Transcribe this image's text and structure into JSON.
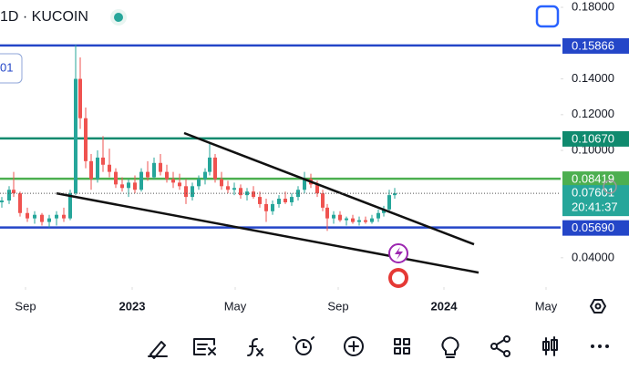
{
  "chart_data": {
    "type": "candlestick",
    "title": "1D · KUCOIN",
    "indicator_label": "01",
    "x": [
      2,
      10,
      15,
      22,
      30,
      38,
      46,
      54,
      62,
      70,
      77,
      83,
      88,
      94,
      100,
      107,
      113,
      120,
      127,
      134,
      141,
      148,
      155,
      162,
      169,
      176,
      183,
      190,
      197,
      204,
      211,
      218,
      225,
      230,
      236,
      243,
      250,
      257,
      264,
      271,
      278,
      285,
      292,
      299,
      306,
      313,
      320,
      327,
      334,
      341,
      348,
      354,
      359,
      366,
      373,
      380,
      387,
      394,
      401,
      408,
      415,
      421,
      427,
      433
    ],
    "open": [
      0.071,
      0.072,
      0.078,
      0.076,
      0.065,
      0.062,
      0.064,
      0.06,
      0.062,
      0.064,
      0.062,
      0.076,
      0.14,
      0.118,
      0.094,
      0.084,
      0.096,
      0.092,
      0.088,
      0.081,
      0.079,
      0.082,
      0.078,
      0.088,
      0.085,
      0.093,
      0.088,
      0.084,
      0.082,
      0.08,
      0.074,
      0.08,
      0.084,
      0.088,
      0.096,
      0.084,
      0.08,
      0.078,
      0.079,
      0.075,
      0.077,
      0.074,
      0.07,
      0.066,
      0.07,
      0.073,
      0.071,
      0.074,
      0.078,
      0.084,
      0.081,
      0.076,
      0.068,
      0.062,
      0.064,
      0.061,
      0.062,
      0.06,
      0.061,
      0.06,
      0.062,
      0.065,
      0.067,
      0.075
    ],
    "high": [
      0.074,
      0.08,
      0.088,
      0.077,
      0.068,
      0.066,
      0.065,
      0.064,
      0.066,
      0.068,
      0.078,
      0.159,
      0.152,
      0.124,
      0.098,
      0.1,
      0.108,
      0.101,
      0.09,
      0.085,
      0.084,
      0.086,
      0.09,
      0.094,
      0.096,
      0.098,
      0.092,
      0.088,
      0.087,
      0.084,
      0.082,
      0.086,
      0.09,
      0.104,
      0.098,
      0.088,
      0.083,
      0.082,
      0.081,
      0.079,
      0.08,
      0.077,
      0.073,
      0.072,
      0.075,
      0.077,
      0.076,
      0.08,
      0.088,
      0.087,
      0.083,
      0.078,
      0.07,
      0.066,
      0.066,
      0.063,
      0.064,
      0.063,
      0.063,
      0.064,
      0.067,
      0.069,
      0.078,
      0.079
    ],
    "low": [
      0.068,
      0.07,
      0.074,
      0.063,
      0.06,
      0.059,
      0.058,
      0.057,
      0.058,
      0.06,
      0.061,
      0.075,
      0.112,
      0.09,
      0.078,
      0.082,
      0.088,
      0.085,
      0.079,
      0.077,
      0.074,
      0.076,
      0.077,
      0.083,
      0.084,
      0.086,
      0.082,
      0.079,
      0.078,
      0.07,
      0.072,
      0.078,
      0.081,
      0.086,
      0.082,
      0.078,
      0.076,
      0.075,
      0.073,
      0.072,
      0.073,
      0.068,
      0.06,
      0.064,
      0.068,
      0.07,
      0.069,
      0.072,
      0.076,
      0.079,
      0.074,
      0.066,
      0.055,
      0.059,
      0.06,
      0.058,
      0.059,
      0.058,
      0.059,
      0.059,
      0.06,
      0.063,
      0.066,
      0.073
    ],
    "close": [
      0.072,
      0.078,
      0.076,
      0.065,
      0.062,
      0.064,
      0.06,
      0.062,
      0.064,
      0.062,
      0.076,
      0.14,
      0.118,
      0.094,
      0.084,
      0.096,
      0.092,
      0.088,
      0.081,
      0.079,
      0.082,
      0.078,
      0.088,
      0.085,
      0.093,
      0.088,
      0.084,
      0.082,
      0.08,
      0.074,
      0.08,
      0.084,
      0.088,
      0.096,
      0.084,
      0.08,
      0.078,
      0.079,
      0.075,
      0.077,
      0.074,
      0.07,
      0.066,
      0.07,
      0.073,
      0.071,
      0.074,
      0.078,
      0.084,
      0.081,
      0.076,
      0.068,
      0.062,
      0.064,
      0.061,
      0.062,
      0.06,
      0.061,
      0.06,
      0.062,
      0.065,
      0.067,
      0.075,
      0.076
    ],
    "up_color": "#26a69a",
    "down_color": "#ef5350",
    "xlim": [
      0,
      615
    ],
    "xticks": [
      {
        "value": 28,
        "label": "Sep"
      },
      {
        "value": 145,
        "label": "2023"
      },
      {
        "value": 258,
        "label": "May"
      },
      {
        "value": 371,
        "label": "Sep"
      },
      {
        "value": 487,
        "label": "2024"
      },
      {
        "value": 599,
        "label": "May"
      }
    ],
    "ylim": [
      0.0236,
      0.1841
    ],
    "yticks": [
      {
        "value": 0.18,
        "label": "0.18000"
      },
      {
        "value": 0.14,
        "label": "0.14000"
      },
      {
        "value": 0.12,
        "label": "0.12000"
      },
      {
        "value": 0.1,
        "label": "0.10000"
      },
      {
        "value": 0.04,
        "label": "0.04000"
      }
    ],
    "price_levels": [
      {
        "value": 0.15866,
        "label": "0.15866",
        "color": "#2446c8"
      },
      {
        "value": 0.1067,
        "label": "0.10670",
        "color": "#0f8a6e"
      },
      {
        "value": 0.08419,
        "label": "0.08419",
        "color": "#4caf50"
      },
      {
        "value": 0.0569,
        "label": "0.05690",
        "color": "#2446c8"
      }
    ],
    "last_price": {
      "value": 0.07601,
      "label": "0.07601",
      "countdown": "20:41:37",
      "color": "#26a69a"
    },
    "trendlines": [
      {
        "x": [
          202,
          520
        ],
        "y": [
          0.1097,
          0.0475
        ]
      },
      {
        "x": [
          62,
          525
        ],
        "y": [
          0.076,
          0.0317
        ]
      }
    ]
  }
}
